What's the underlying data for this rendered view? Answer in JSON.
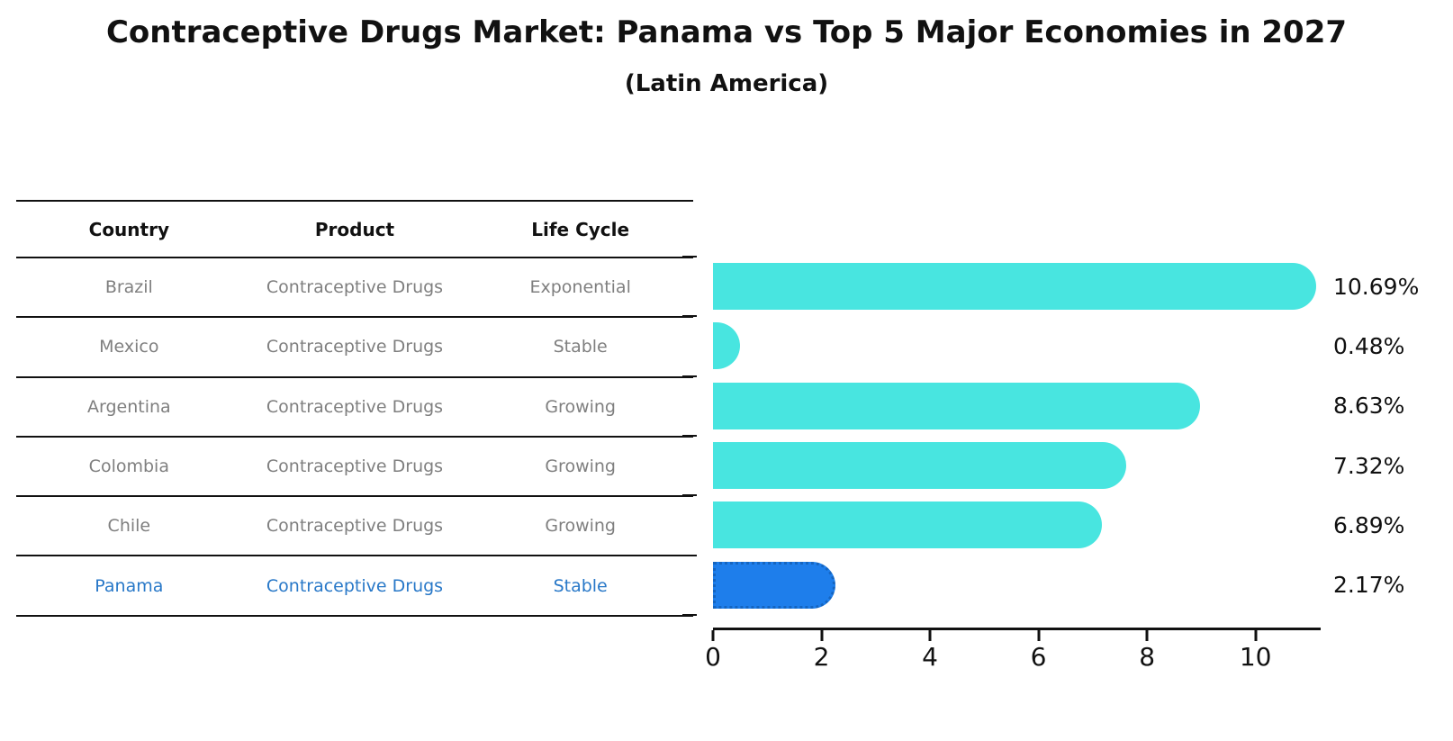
{
  "title": "Contraceptive Drugs Market: Panama vs Top 5 Major Economies in 2027",
  "subtitle": "(Latin America)",
  "colors": {
    "bar": "#48E5E0",
    "highlight_bar": "#1E7EEB",
    "highlight_border": "#1565C0",
    "highlight_text": "#2878C8",
    "table_text": "#7f7f7f",
    "axis": "#111111"
  },
  "table": {
    "headers": [
      "Country",
      "Product",
      "Life Cycle"
    ],
    "rows": [
      {
        "country": "Brazil",
        "product": "Contraceptive Drugs",
        "life_cycle": "Exponential",
        "share": "10.69%",
        "highlighted": false
      },
      {
        "country": "Mexico",
        "product": "Contraceptive Drugs",
        "life_cycle": "Stable",
        "share": "0.48%",
        "highlighted": false
      },
      {
        "country": "Argentina",
        "product": "Contraceptive Drugs",
        "life_cycle": "Growing",
        "share": "8.63%",
        "highlighted": false
      },
      {
        "country": "Colombia",
        "product": "Contraceptive Drugs",
        "life_cycle": "Growing",
        "share": "7.32%",
        "highlighted": false
      },
      {
        "country": "Chile",
        "product": "Contraceptive Drugs",
        "life_cycle": "Growing",
        "share": "6.89%",
        "highlighted": false
      },
      {
        "country": "Panama",
        "product": "Contraceptive Drugs",
        "life_cycle": "Stable",
        "share": "2.17%",
        "highlighted": true
      }
    ]
  },
  "chart_data": {
    "type": "bar",
    "orientation": "horizontal",
    "title": "Contraceptive Drugs Market: Panama vs Top 5 Major Economies in 2027 (Latin America)",
    "categories": [
      "Brazil",
      "Mexico",
      "Argentina",
      "Colombia",
      "Chile",
      "Panama"
    ],
    "values": [
      10.69,
      0.48,
      8.63,
      7.32,
      6.89,
      2.17
    ],
    "value_labels": [
      "10.69%",
      "0.48%",
      "8.63%",
      "7.32%",
      "6.89%",
      "2.17%"
    ],
    "highlight": "Panama",
    "xlabel": "",
    "ylabel": "",
    "xlim": [
      0,
      11.2
    ],
    "xticks": [
      0,
      2,
      4,
      6,
      8,
      10
    ],
    "xtick_labels": [
      "0",
      "2",
      "4",
      "6",
      "8",
      "10"
    ],
    "grid": false,
    "legend": false
  }
}
